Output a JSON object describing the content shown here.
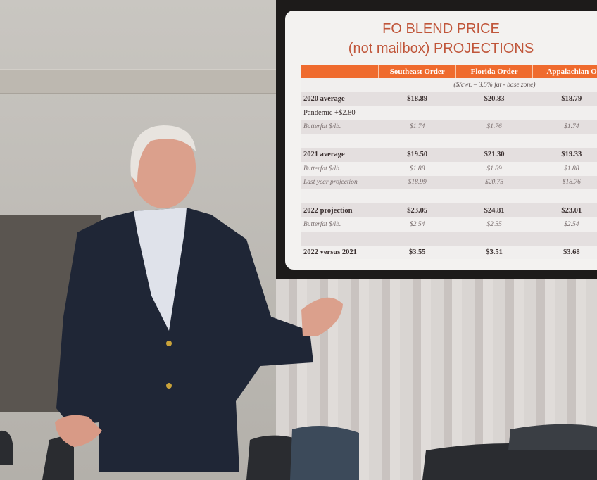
{
  "slide": {
    "title_line1": "FO BLEND PRICE",
    "title_line2": "(not mailbox) PROJECTIONS",
    "columns": [
      "",
      "Southeast Order",
      "Florida Order",
      "Appalachian O"
    ],
    "units": "($/cwt. – 3.5% fat - base zone)",
    "rows": [
      {
        "label": "2020 average",
        "style": "b",
        "values": [
          "$18.89",
          "$20.83",
          "$18.79"
        ]
      },
      {
        "label": "Pandemic  +$2.80",
        "style": "",
        "values": [
          "",
          "",
          ""
        ]
      },
      {
        "label": "Butterfat $/lb.",
        "style": "i",
        "values": [
          "$1.74",
          "$1.76",
          "$1.74"
        ]
      },
      {
        "label": "",
        "style": "",
        "values": [
          "",
          "",
          ""
        ]
      },
      {
        "label": "2021 average",
        "style": "b",
        "values": [
          "$19.50",
          "$21.30",
          "$19.33"
        ]
      },
      {
        "label": "Butterfat $/lb.",
        "style": "i",
        "values": [
          "$1.88",
          "$1.89",
          "$1.88"
        ]
      },
      {
        "label": "Last year projection",
        "style": "i",
        "values": [
          "$18.99",
          "$20.75",
          "$18.76"
        ]
      },
      {
        "label": "",
        "style": "",
        "values": [
          "",
          "",
          ""
        ]
      },
      {
        "label": "2022 projection",
        "style": "b",
        "values": [
          "$23.05",
          "$24.81",
          "$23.01"
        ]
      },
      {
        "label": "Butterfat $/lb.",
        "style": "i",
        "values": [
          "$2.54",
          "$2.55",
          "$2.54"
        ]
      },
      {
        "label": "",
        "style": "",
        "values": [
          "",
          "",
          ""
        ]
      },
      {
        "label": "2022 versus 2021",
        "style": "b",
        "values": [
          "$3.55",
          "$3.51",
          "$3.68"
        ]
      }
    ]
  },
  "colors": {
    "header": "#ef6b2e",
    "title": "#c0563a",
    "jacket": "#1f2636"
  }
}
